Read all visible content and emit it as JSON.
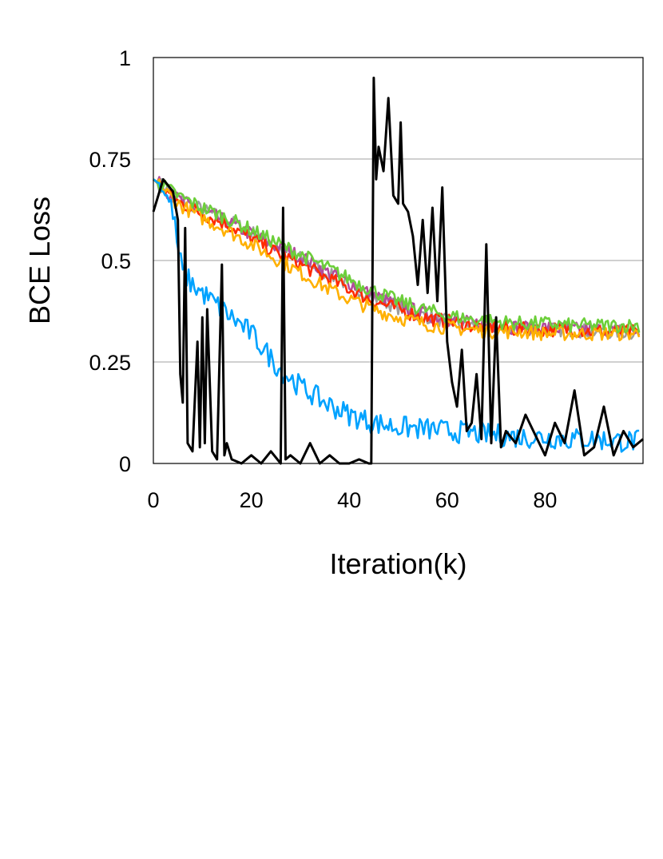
{
  "chart_data": {
    "type": "line",
    "title": "",
    "xlabel": "Iteration(k)",
    "ylabel": "BCE Loss",
    "xlim": [
      0,
      100
    ],
    "ylim": [
      0,
      1
    ],
    "xticks": [
      0,
      20,
      40,
      60,
      80
    ],
    "xtick_labels": [
      "0",
      "20",
      "40",
      "60",
      "80"
    ],
    "yticks": [
      0,
      0.25,
      0.5,
      0.75,
      1
    ],
    "ytick_labels": [
      "0",
      "0.25",
      "0.5",
      "0.75",
      "1"
    ],
    "grid": "horizontal",
    "legend": "none",
    "series": [
      {
        "color": "#9e9e9e",
        "x": [
          0,
          5,
          10,
          15,
          20,
          25,
          30,
          35,
          40,
          45,
          50,
          55,
          60,
          65,
          70,
          75,
          80,
          85,
          90,
          95,
          100
        ],
        "y": [
          0.7,
          0.655,
          0.625,
          0.6,
          0.57,
          0.535,
          0.505,
          0.47,
          0.44,
          0.41,
          0.385,
          0.365,
          0.35,
          0.34,
          0.335,
          0.335,
          0.33,
          0.33,
          0.325,
          0.325,
          0.32
        ]
      },
      {
        "color": "#b24b9c",
        "x": [
          0,
          5,
          10,
          15,
          20,
          25,
          30,
          35,
          40,
          45,
          50,
          55,
          60,
          65,
          70,
          75,
          80,
          85,
          90,
          95,
          100
        ],
        "y": [
          0.7,
          0.65,
          0.62,
          0.595,
          0.565,
          0.535,
          0.51,
          0.475,
          0.445,
          0.415,
          0.39,
          0.37,
          0.355,
          0.345,
          0.34,
          0.335,
          0.335,
          0.33,
          0.33,
          0.325,
          0.325
        ]
      },
      {
        "color": "#ff2a00",
        "x": [
          0,
          5,
          10,
          15,
          20,
          25,
          30,
          35,
          40,
          45,
          50,
          55,
          60,
          65,
          70,
          75,
          80,
          85,
          90,
          95,
          100
        ],
        "y": [
          0.7,
          0.645,
          0.615,
          0.59,
          0.555,
          0.52,
          0.49,
          0.46,
          0.43,
          0.4,
          0.38,
          0.36,
          0.35,
          0.34,
          0.335,
          0.33,
          0.33,
          0.33,
          0.325,
          0.325,
          0.325
        ]
      },
      {
        "color": "#ffb000",
        "x": [
          0,
          5,
          10,
          15,
          20,
          25,
          30,
          35,
          40,
          45,
          50,
          55,
          60,
          65,
          70,
          75,
          80,
          85,
          90,
          95,
          100
        ],
        "y": [
          0.7,
          0.64,
          0.605,
          0.575,
          0.54,
          0.505,
          0.47,
          0.435,
          0.405,
          0.38,
          0.36,
          0.345,
          0.335,
          0.33,
          0.325,
          0.325,
          0.32,
          0.32,
          0.32,
          0.32,
          0.32
        ]
      },
      {
        "color": "#6ccf3a",
        "x": [
          0,
          5,
          10,
          15,
          20,
          25,
          30,
          35,
          40,
          45,
          50,
          55,
          60,
          65,
          70,
          75,
          80,
          85,
          90,
          95,
          100
        ],
        "y": [
          0.7,
          0.66,
          0.63,
          0.605,
          0.575,
          0.545,
          0.515,
          0.485,
          0.455,
          0.425,
          0.4,
          0.38,
          0.365,
          0.355,
          0.35,
          0.345,
          0.345,
          0.34,
          0.34,
          0.34,
          0.34
        ]
      },
      {
        "color": "#00a2ff",
        "x": [
          0,
          2,
          4,
          5,
          6,
          8,
          10,
          12,
          14,
          16,
          18,
          20,
          22,
          24,
          26,
          28,
          30,
          35,
          40,
          45,
          50,
          55,
          60,
          65,
          70,
          75,
          80,
          85,
          90,
          95,
          100
        ],
        "y": [
          0.7,
          0.68,
          0.62,
          0.53,
          0.47,
          0.44,
          0.42,
          0.4,
          0.38,
          0.36,
          0.34,
          0.32,
          0.29,
          0.26,
          0.23,
          0.21,
          0.19,
          0.15,
          0.12,
          0.1,
          0.09,
          0.085,
          0.08,
          0.075,
          0.07,
          0.065,
          0.065,
          0.06,
          0.06,
          0.055,
          0.055
        ]
      },
      {
        "color": "#000000",
        "x": [
          0,
          2,
          4,
          5,
          5.5,
          6,
          6.5,
          7,
          8,
          9,
          9.5,
          10,
          10.5,
          11,
          12,
          13,
          14,
          14.5,
          15,
          16,
          18,
          20,
          22,
          24,
          26,
          26.5,
          27,
          28,
          30,
          32,
          34,
          36,
          38,
          40,
          42,
          44,
          44.5,
          45,
          45.5,
          46,
          47,
          48,
          49,
          50,
          50.5,
          51,
          52,
          53,
          54,
          55,
          56,
          57,
          58,
          59,
          60,
          61,
          62,
          63,
          64,
          65,
          66,
          67,
          68,
          69,
          70,
          71,
          72,
          74,
          76,
          78,
          80,
          82,
          84,
          86,
          88,
          90,
          92,
          94,
          96,
          98,
          100
        ],
        "y": [
          0.62,
          0.7,
          0.67,
          0.6,
          0.22,
          0.15,
          0.58,
          0.05,
          0.03,
          0.3,
          0.04,
          0.36,
          0.05,
          0.38,
          0.03,
          0.01,
          0.49,
          0.02,
          0.05,
          0.01,
          0.0,
          0.02,
          0.0,
          0.03,
          0.0,
          0.63,
          0.01,
          0.02,
          0.0,
          0.05,
          0.0,
          0.02,
          0.0,
          0.0,
          0.01,
          0.0,
          0.0,
          0.95,
          0.7,
          0.78,
          0.72,
          0.9,
          0.66,
          0.64,
          0.84,
          0.64,
          0.62,
          0.56,
          0.44,
          0.6,
          0.42,
          0.63,
          0.4,
          0.68,
          0.3,
          0.2,
          0.14,
          0.28,
          0.08,
          0.1,
          0.22,
          0.06,
          0.54,
          0.05,
          0.36,
          0.04,
          0.08,
          0.05,
          0.12,
          0.07,
          0.02,
          0.1,
          0.05,
          0.18,
          0.02,
          0.04,
          0.14,
          0.02,
          0.08,
          0.04,
          0.06
        ]
      }
    ]
  }
}
